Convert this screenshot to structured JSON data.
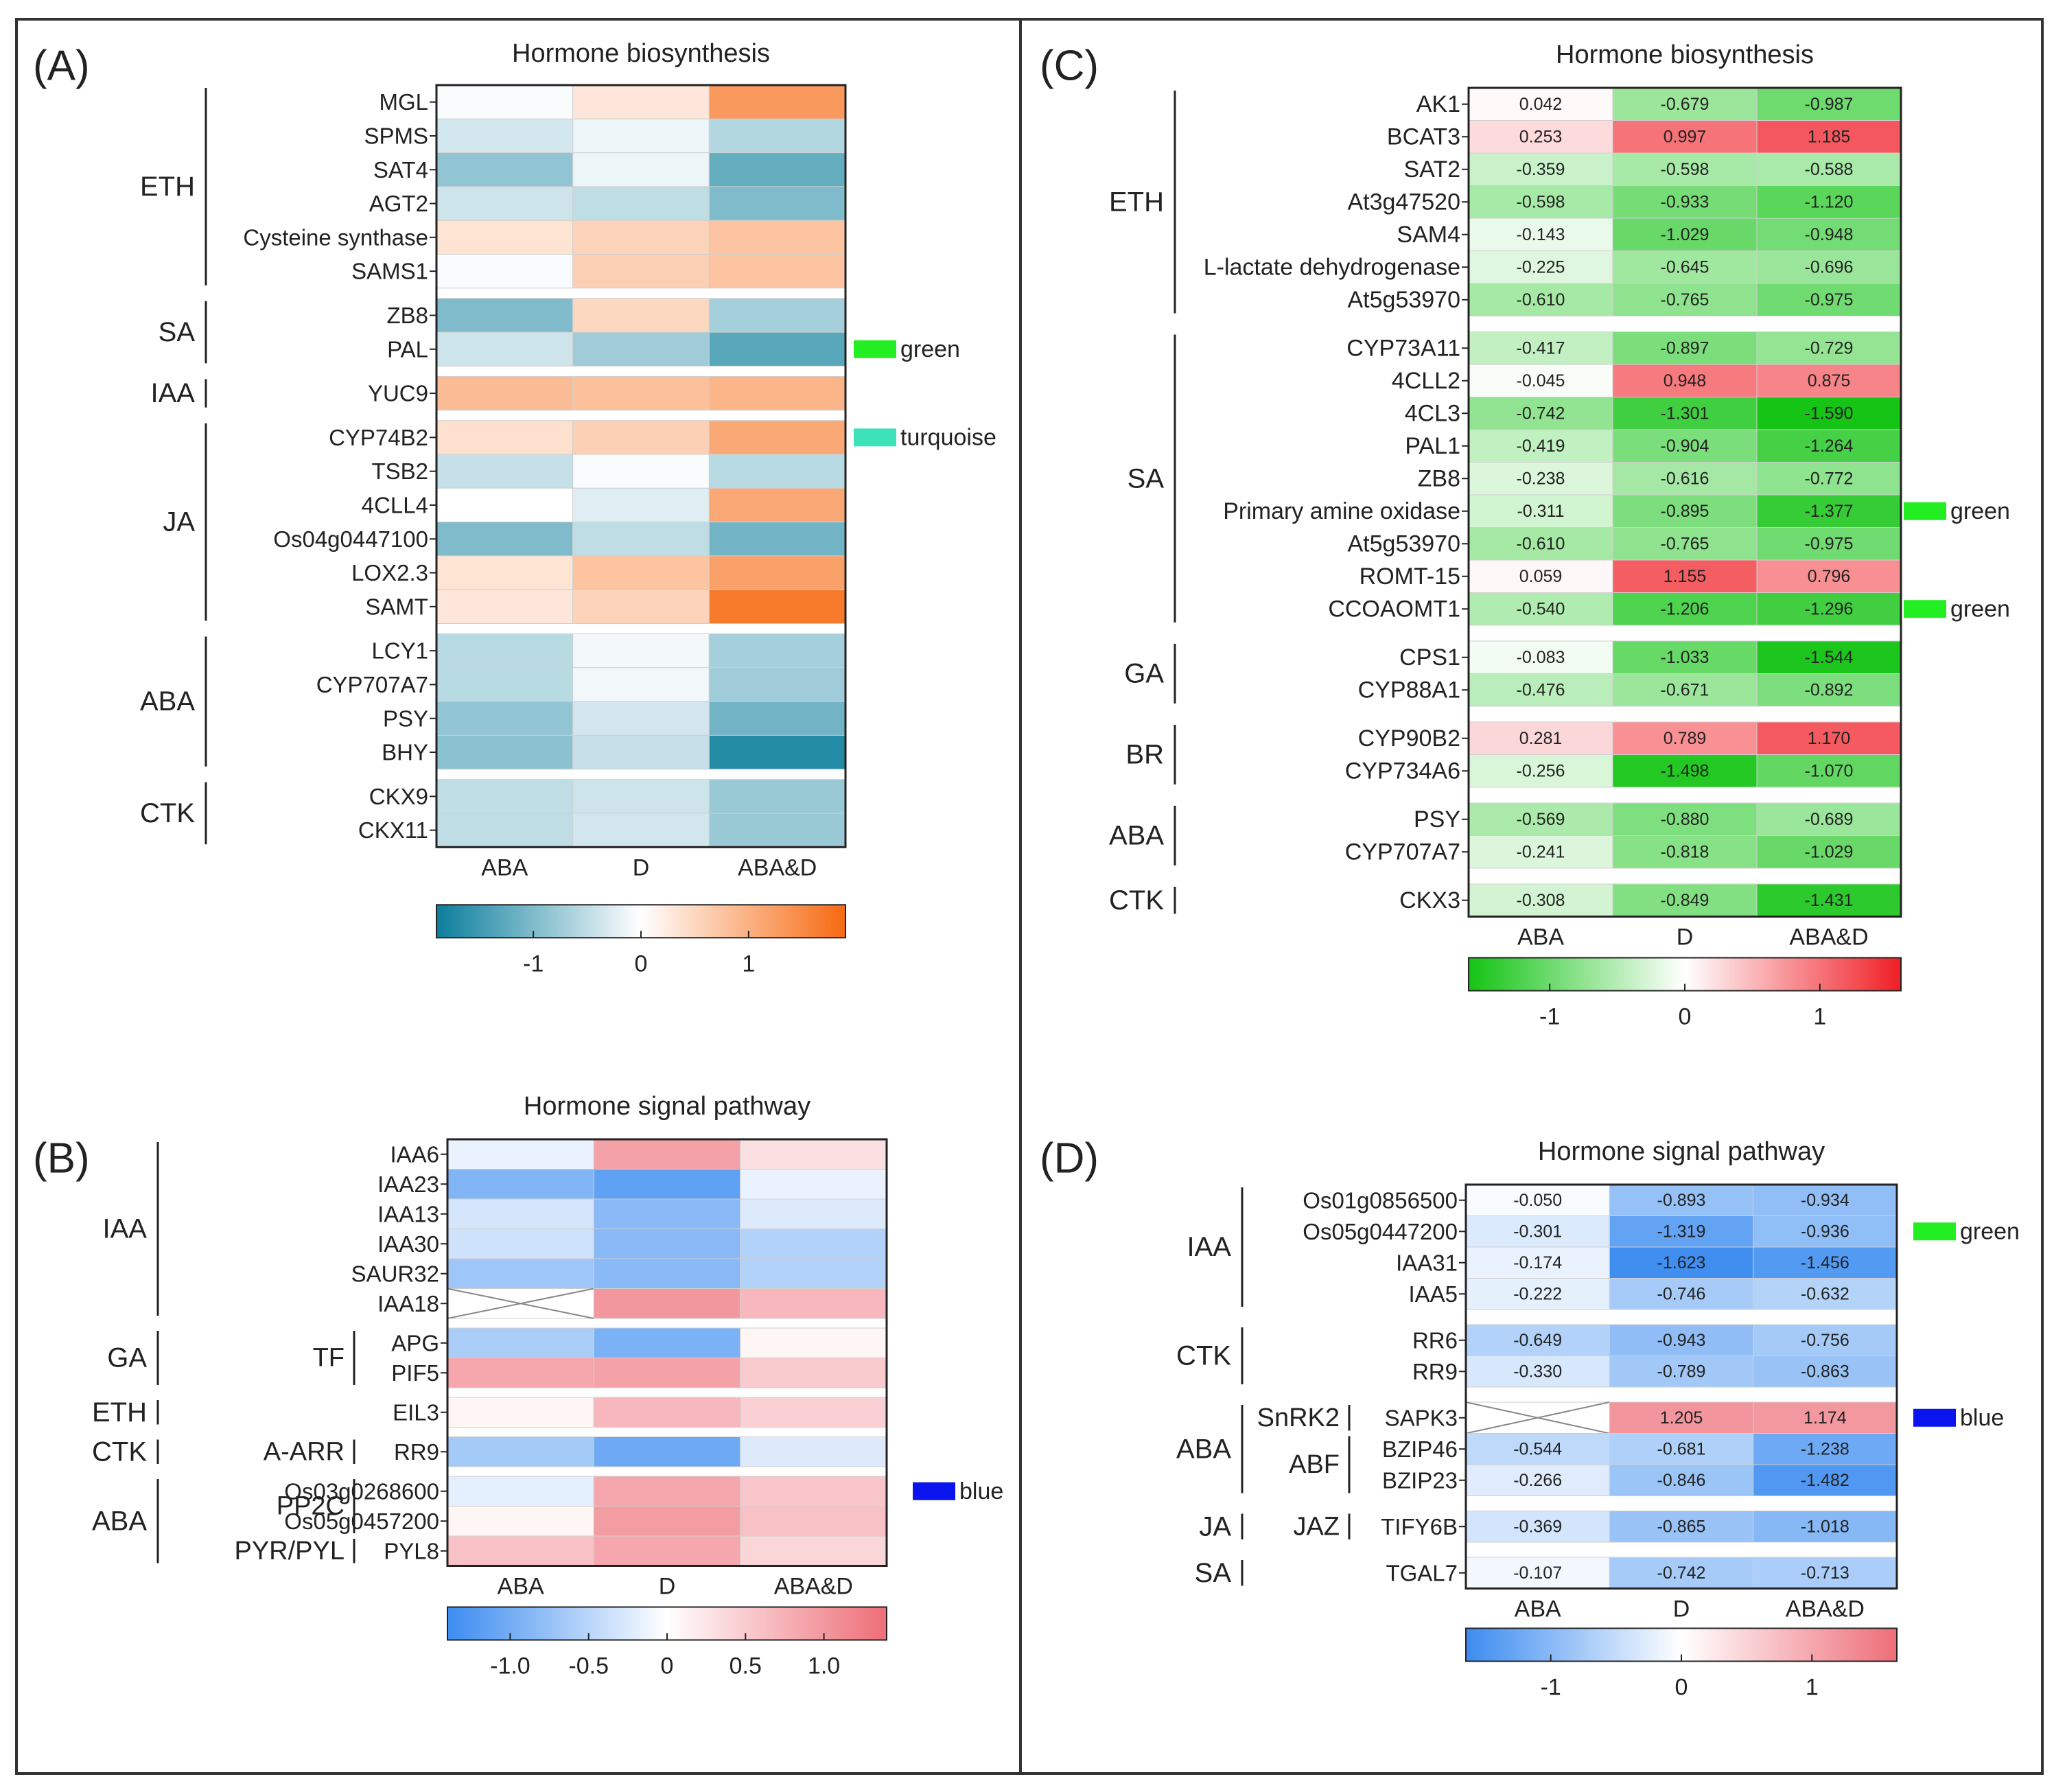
{
  "colors": {
    "teal_neg": "#0b7e9c",
    "orange_pos": "#f76a12",
    "green_neg": "#14c414",
    "red_pos": "#f01e26",
    "blue_neg": "#3c8cf0",
    "rose_pos": "#ee6e78",
    "module_green": "#22ee22",
    "module_turquoise": "#3ee2b8",
    "module_blue": "#0a14ee"
  },
  "chart_data": [
    {
      "panel": "(A)",
      "type": "heatmap",
      "title": "Hormone biosynthesis",
      "columns": [
        "ABA",
        "D",
        "ABA&D"
      ],
      "colorbar": {
        "min": -1.9,
        "max": 1.9,
        "ticks": [
          -1,
          0,
          1
        ],
        "tick_labels": [
          "-1",
          "0",
          "1"
        ],
        "scheme": "teal-white-orange"
      },
      "show_values": false,
      "rows": [
        {
          "gene": "MGL",
          "values": [
            -0.05,
            0.3,
            1.3
          ]
        },
        {
          "gene": "SPMS",
          "values": [
            -0.35,
            -0.15,
            -0.6
          ]
        },
        {
          "gene": "SAT4",
          "values": [
            -0.85,
            -0.15,
            -1.2
          ]
        },
        {
          "gene": "AGT2",
          "values": [
            -0.4,
            -0.5,
            -1.0
          ]
        },
        {
          "gene": "Cysteine synthase",
          "values": [
            0.35,
            0.55,
            0.75
          ]
        },
        {
          "gene": "SAMS1",
          "values": [
            -0.05,
            0.6,
            0.75
          ]
        },
        {
          "gene": "ZB8",
          "values": [
            -1.0,
            0.5,
            -0.7
          ]
        },
        {
          "gene": "PAL",
          "values": [
            -0.4,
            -0.75,
            -1.3
          ]
        },
        {
          "gene": "YUC9",
          "values": [
            0.85,
            0.8,
            0.95
          ]
        },
        {
          "gene": "CYP74B2",
          "values": [
            0.4,
            0.6,
            1.1
          ]
        },
        {
          "gene": "TSB2",
          "values": [
            -0.45,
            -0.05,
            -0.55
          ]
        },
        {
          "gene": "4CLL4",
          "values": [
            0.0,
            -0.25,
            1.1
          ]
        },
        {
          "gene": "Os04g0447100",
          "values": [
            -1.0,
            -0.5,
            -1.1
          ]
        },
        {
          "gene": "LOX2.3",
          "values": [
            0.35,
            0.75,
            1.2
          ]
        },
        {
          "gene": "SAMT",
          "values": [
            0.3,
            0.55,
            1.7
          ]
        },
        {
          "gene": "LCY1",
          "values": [
            -0.55,
            -0.1,
            -0.7
          ]
        },
        {
          "gene": "CYP707A7",
          "values": [
            -0.55,
            -0.1,
            -0.75
          ]
        },
        {
          "gene": "PSY",
          "values": [
            -0.85,
            -0.35,
            -1.1
          ]
        },
        {
          "gene": "BHY",
          "values": [
            -0.9,
            -0.45,
            -1.7
          ]
        },
        {
          "gene": "CKX9",
          "values": [
            -0.5,
            -0.4,
            -0.8
          ]
        },
        {
          "gene": "CKX11",
          "values": [
            -0.5,
            -0.35,
            -0.8
          ]
        }
      ],
      "groups": [
        {
          "label": "ETH",
          "from": 0,
          "to": 5
        },
        {
          "label": "SA",
          "from": 6,
          "to": 7
        },
        {
          "label": "IAA",
          "from": 8,
          "to": 8
        },
        {
          "label": "JA",
          "from": 9,
          "to": 14
        },
        {
          "label": "ABA",
          "from": 15,
          "to": 18
        },
        {
          "label": "CTK",
          "from": 19,
          "to": 20
        }
      ],
      "modules": [
        {
          "label": "green",
          "color": "#22ee22",
          "row": 7
        },
        {
          "label": "turquoise",
          "color": "#3ee2b8",
          "row": 9
        }
      ]
    },
    {
      "panel": "(B)",
      "type": "heatmap",
      "title": "Hormone signal pathway",
      "columns": [
        "ABA",
        "D",
        "ABA&D"
      ],
      "colorbar": {
        "min": -1.4,
        "max": 1.4,
        "ticks": [
          -1.0,
          -0.5,
          0,
          0.5,
          1.0
        ],
        "tick_labels": [
          "-1.0",
          "-0.5",
          "0",
          "0.5",
          "1.0"
        ],
        "scheme": "blue-white-rose"
      },
      "show_values": false,
      "rows": [
        {
          "gene": "IAA6",
          "values": [
            -0.15,
            0.9,
            0.3
          ]
        },
        {
          "gene": "IAA23",
          "values": [
            -0.9,
            -1.15,
            -0.15
          ]
        },
        {
          "gene": "IAA13",
          "values": [
            -0.3,
            -0.85,
            -0.25
          ]
        },
        {
          "gene": "IAA30",
          "values": [
            -0.35,
            -0.85,
            -0.55
          ]
        },
        {
          "gene": "SAUR32",
          "values": [
            -0.7,
            -0.85,
            -0.55
          ]
        },
        {
          "gene": "IAA18",
          "values": [
            null,
            1.0,
            0.7
          ]
        },
        {
          "gene": "APG",
          "values": [
            -0.6,
            -0.95,
            0.1
          ]
        },
        {
          "gene": "PIF5",
          "values": [
            0.85,
            0.9,
            0.5
          ]
        },
        {
          "gene": "EIL3",
          "values": [
            0.1,
            0.7,
            0.45
          ]
        },
        {
          "gene": "RR9",
          "values": [
            -0.65,
            -1.05,
            -0.25
          ]
        },
        {
          "gene": "Os03g0268600",
          "values": [
            -0.2,
            0.85,
            0.55
          ]
        },
        {
          "gene": "Os05g0457200",
          "values": [
            0.1,
            0.95,
            0.6
          ]
        },
        {
          "gene": "PYL8",
          "values": [
            0.6,
            0.85,
            0.4
          ]
        }
      ],
      "groups": [
        {
          "label": "IAA",
          "from": 0,
          "to": 5
        },
        {
          "label": "GA",
          "from": 6,
          "to": 7
        },
        {
          "label": "ETH",
          "from": 8,
          "to": 8
        },
        {
          "label": "CTK",
          "from": 9,
          "to": 9
        },
        {
          "label": "ABA",
          "from": 10,
          "to": 12
        }
      ],
      "subgroups": [
        {
          "label": "TF",
          "from": 6,
          "to": 7
        },
        {
          "label": "A-ARR",
          "from": 9,
          "to": 9
        },
        {
          "label": "PP2C",
          "from": 10,
          "to": 11
        },
        {
          "label": "PYR/PYL",
          "from": 12,
          "to": 12
        }
      ],
      "modules": [
        {
          "label": "blue",
          "color": "#0a14ee",
          "row": 10
        }
      ]
    },
    {
      "panel": "(C)",
      "type": "heatmap",
      "title": "Hormone biosynthesis",
      "columns": [
        "ABA",
        "D",
        "ABA&D"
      ],
      "colorbar": {
        "min": -1.6,
        "max": 1.6,
        "ticks": [
          -1,
          0,
          1
        ],
        "tick_labels": [
          "-1",
          "0",
          "1"
        ],
        "scheme": "green-white-red"
      },
      "show_values": true,
      "rows": [
        {
          "gene": "AK1",
          "values": [
            0.042,
            -0.679,
            -0.987
          ],
          "labels": [
            "0.042",
            "-0.679",
            "-0.987"
          ]
        },
        {
          "gene": "BCAT3",
          "values": [
            0.253,
            0.997,
            1.185
          ],
          "labels": [
            "0.253",
            "0.997",
            "1.185"
          ]
        },
        {
          "gene": "SAT2",
          "values": [
            -0.359,
            -0.598,
            -0.588
          ],
          "labels": [
            "-0.359",
            "-0.598",
            "-0.588"
          ]
        },
        {
          "gene": "At3g47520",
          "values": [
            -0.598,
            -0.933,
            -1.12
          ],
          "labels": [
            "-0.598",
            "-0.933",
            "-1.120"
          ]
        },
        {
          "gene": "SAM4",
          "values": [
            -0.143,
            -1.029,
            -0.948
          ],
          "labels": [
            "-0.143",
            "-1.029",
            "-0.948"
          ]
        },
        {
          "gene": "L-lactate dehydrogenase",
          "values": [
            -0.225,
            -0.645,
            -0.696
          ],
          "labels": [
            "-0.225",
            "-0.645",
            "-0.696"
          ]
        },
        {
          "gene": "At5g53970",
          "values": [
            -0.61,
            -0.765,
            -0.975
          ],
          "labels": [
            "-0.610",
            "-0.765",
            "-0.975"
          ]
        },
        {
          "gene": "CYP73A11",
          "values": [
            -0.417,
            -0.897,
            -0.729
          ],
          "labels": [
            "-0.417",
            "-0.897",
            "-0.729"
          ]
        },
        {
          "gene": "4CLL2",
          "values": [
            -0.045,
            0.948,
            0.875
          ],
          "labels": [
            "-0.045",
            "0.948",
            "0.875"
          ]
        },
        {
          "gene": "4CL3",
          "values": [
            -0.742,
            -1.301,
            -1.59
          ],
          "labels": [
            "-0.742",
            "-1.301",
            "-1.590"
          ]
        },
        {
          "gene": "PAL1",
          "values": [
            -0.419,
            -0.904,
            -1.264
          ],
          "labels": [
            "-0.419",
            "-0.904",
            "-1.264"
          ]
        },
        {
          "gene": "ZB8",
          "values": [
            -0.238,
            -0.616,
            -0.772
          ],
          "labels": [
            "-0.238",
            "-0.616",
            "-0.772"
          ]
        },
        {
          "gene": "Primary amine oxidase",
          "values": [
            -0.311,
            -0.895,
            -1.377
          ],
          "labels": [
            "-0.311",
            "-0.895",
            "-1.377"
          ]
        },
        {
          "gene": "At5g53970",
          "values": [
            -0.61,
            -0.765,
            -0.975
          ],
          "labels": [
            "-0.610",
            "-0.765",
            "-0.975"
          ]
        },
        {
          "gene": "ROMT-15",
          "values": [
            0.059,
            1.155,
            0.796
          ],
          "labels": [
            "0.059",
            "1.155",
            "0.796"
          ]
        },
        {
          "gene": "CCOAOMT1",
          "values": [
            -0.54,
            -1.206,
            -1.296
          ],
          "labels": [
            "-0.540",
            "-1.206",
            "-1.296"
          ]
        },
        {
          "gene": "CPS1",
          "values": [
            -0.083,
            -1.033,
            -1.544
          ],
          "labels": [
            "-0.083",
            "-1.033",
            "-1.544"
          ]
        },
        {
          "gene": "CYP88A1",
          "values": [
            -0.476,
            -0.671,
            -0.892
          ],
          "labels": [
            "-0.476",
            "-0.671",
            "-0.892"
          ]
        },
        {
          "gene": "CYP90B2",
          "values": [
            0.281,
            0.789,
            1.17
          ],
          "labels": [
            "0.281",
            "0.789",
            "1.170"
          ]
        },
        {
          "gene": "CYP734A6",
          "values": [
            -0.256,
            -1.498,
            -1.07
          ],
          "labels": [
            "-0.256",
            "-1.498",
            "-1.070"
          ]
        },
        {
          "gene": "PSY",
          "values": [
            -0.569,
            -0.88,
            -0.689
          ],
          "labels": [
            "-0.569",
            "-0.880",
            "-0.689"
          ]
        },
        {
          "gene": "CYP707A7",
          "values": [
            -0.241,
            -0.818,
            -1.029
          ],
          "labels": [
            "-0.241",
            "-0.818",
            "-1.029"
          ]
        },
        {
          "gene": "CKX3",
          "values": [
            -0.308,
            -0.849,
            -1.431
          ],
          "labels": [
            "-0.308",
            "-0.849",
            "-1.431"
          ]
        }
      ],
      "groups": [
        {
          "label": "ETH",
          "from": 0,
          "to": 6
        },
        {
          "label": "SA",
          "from": 7,
          "to": 15
        },
        {
          "label": "GA",
          "from": 16,
          "to": 17
        },
        {
          "label": "BR",
          "from": 18,
          "to": 19
        },
        {
          "label": "ABA",
          "from": 20,
          "to": 21
        },
        {
          "label": "CTK",
          "from": 22,
          "to": 22
        }
      ],
      "modules": [
        {
          "label": "green",
          "color": "#22ee22",
          "row": 12
        },
        {
          "label": "green",
          "color": "#22ee22",
          "row": 15
        }
      ]
    },
    {
      "panel": "(D)",
      "type": "heatmap",
      "title": "Hormone signal pathway",
      "columns": [
        "ABA",
        "D",
        "ABA&D"
      ],
      "colorbar": {
        "min": -1.65,
        "max": 1.65,
        "ticks": [
          -1,
          0,
          1
        ],
        "tick_labels": [
          "-1",
          "0",
          "1"
        ],
        "scheme": "blue-white-rose"
      },
      "show_values": true,
      "rows": [
        {
          "gene": "Os01g0856500",
          "values": [
            -0.05,
            -0.893,
            -0.934
          ],
          "labels": [
            "-0.050",
            "-0.893",
            "-0.934"
          ]
        },
        {
          "gene": "Os05g0447200",
          "values": [
            -0.301,
            -1.319,
            -0.936
          ],
          "labels": [
            "-0.301",
            "-1.319",
            "-0.936"
          ]
        },
        {
          "gene": "IAA31",
          "values": [
            -0.174,
            -1.623,
            -1.456
          ],
          "labels": [
            "-0.174",
            "-1.623",
            "-1.456"
          ]
        },
        {
          "gene": "IAA5",
          "values": [
            -0.222,
            -0.746,
            -0.632
          ],
          "labels": [
            "-0.222",
            "-0.746",
            "-0.632"
          ]
        },
        {
          "gene": "RR6",
          "values": [
            -0.649,
            -0.943,
            -0.756
          ],
          "labels": [
            "-0.649",
            "-0.943",
            "-0.756"
          ]
        },
        {
          "gene": "RR9",
          "values": [
            -0.33,
            -0.789,
            -0.863
          ],
          "labels": [
            "-0.330",
            "-0.789",
            "-0.863"
          ]
        },
        {
          "gene": "SAPK3",
          "values": [
            null,
            1.205,
            1.174
          ],
          "labels": [
            "",
            "1.205",
            "1.174"
          ]
        },
        {
          "gene": "BZIP46",
          "values": [
            -0.544,
            -0.681,
            -1.238
          ],
          "labels": [
            "-0.544",
            "-0.681",
            "-1.238"
          ]
        },
        {
          "gene": "BZIP23",
          "values": [
            -0.266,
            -0.846,
            -1.482
          ],
          "labels": [
            "-0.266",
            "-0.846",
            "-1.482"
          ]
        },
        {
          "gene": "TIFY6B",
          "values": [
            -0.369,
            -0.865,
            -1.018
          ],
          "labels": [
            "-0.369",
            "-0.865",
            "-1.018"
          ]
        },
        {
          "gene": "TGAL7",
          "values": [
            -0.107,
            -0.742,
            -0.713
          ],
          "labels": [
            "-0.107",
            "-0.742",
            "-0.713"
          ]
        }
      ],
      "groups": [
        {
          "label": "IAA",
          "from": 0,
          "to": 3
        },
        {
          "label": "CTK",
          "from": 4,
          "to": 5
        },
        {
          "label": "ABA",
          "from": 6,
          "to": 8
        },
        {
          "label": "JA",
          "from": 9,
          "to": 9
        },
        {
          "label": "SA",
          "from": 10,
          "to": 10
        }
      ],
      "subgroups": [
        {
          "label": "SnRK2",
          "from": 6,
          "to": 6
        },
        {
          "label": "ABF",
          "from": 7,
          "to": 8
        },
        {
          "label": "JAZ",
          "from": 9,
          "to": 9
        }
      ],
      "modules": [
        {
          "label": "green",
          "color": "#22ee22",
          "row": 1
        },
        {
          "label": "blue",
          "color": "#0a14ee",
          "row": 6
        }
      ]
    }
  ]
}
